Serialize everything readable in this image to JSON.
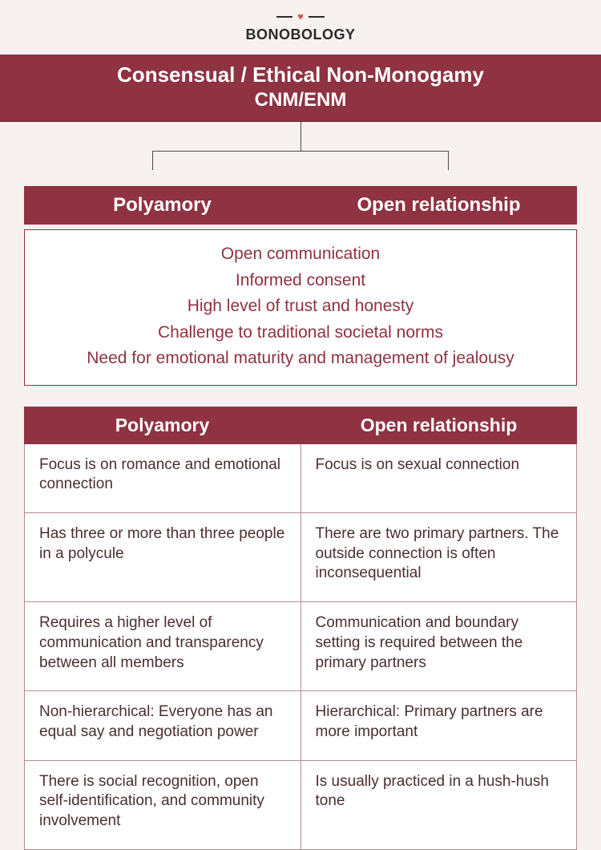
{
  "colors": {
    "primary": "#8f3241",
    "background": "#f7f1ef",
    "cell_border": "#b58c92",
    "text_dark": "#4a2f2f",
    "logo_dark": "#2a2a2a",
    "heart": "#d9534f"
  },
  "logo": {
    "text": "BONOBOLOGY"
  },
  "header": {
    "title": "Consensual / Ethical Non-Monogamy",
    "subtitle": "CNM/ENM"
  },
  "branches": {
    "left_label": "Polyamory",
    "right_label": "Open relationship"
  },
  "shared_traits": [
    "Open communication",
    "Informed consent",
    "High level of trust and honesty",
    "Challenge to traditional societal norms",
    "Need for emotional maturity and management of jealousy"
  ],
  "compare": {
    "left_header": "Polyamory",
    "right_header": "Open relationship",
    "rows": [
      {
        "left": "Focus is on romance and emotional connection",
        "right": "Focus is on sexual connection"
      },
      {
        "left": "Has three or more than three people in a polycule",
        "right": "There are two primary partners. The outside connection is often inconsequential"
      },
      {
        "left": "Requires a higher level of communication and transparency between all members",
        "right": "Communication and boundary setting is required between the primary partners"
      },
      {
        "left": "Non-hierarchical: Everyone has an equal say and negotiation power",
        "right": "Hierarchical: Primary partners are more important"
      },
      {
        "left": "There is social recognition, open self-identification, and community involvement",
        "right": "Is usually practiced in a hush-hush tone"
      }
    ]
  }
}
